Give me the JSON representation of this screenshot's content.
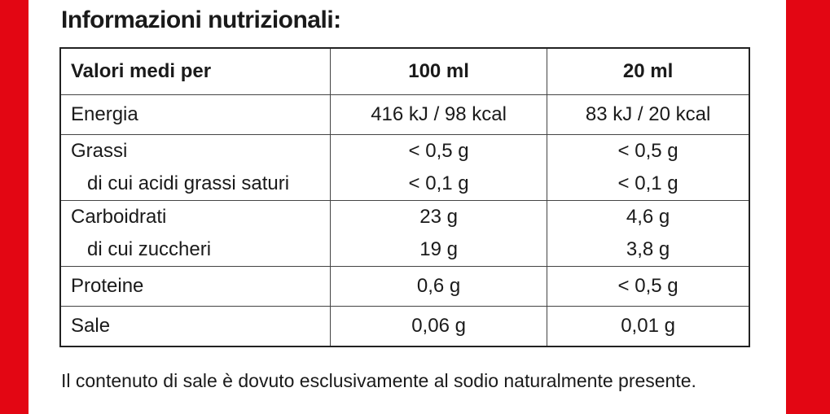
{
  "header": {
    "title": "Informazioni nutrizionali:"
  },
  "table": {
    "columns": [
      "Valori medi per",
      "100 ml",
      "20 ml"
    ],
    "rows": [
      [
        [
          "Energia"
        ],
        [
          "416 kJ / 98 kcal"
        ],
        [
          "83 kJ / 20 kcal"
        ]
      ],
      [
        [
          "Grassi",
          "di cui acidi grassi saturi"
        ],
        [
          "< 0,5 g",
          "< 0,1 g"
        ],
        [
          "< 0,5 g",
          "< 0,1 g"
        ]
      ],
      [
        [
          "Carboidrati",
          "di cui zuccheri"
        ],
        [
          "23 g",
          "19 g"
        ],
        [
          "4,6 g",
          "3,8 g"
        ]
      ],
      [
        [
          "Proteine"
        ],
        [
          "0,6 g"
        ],
        [
          "< 0,5 g"
        ]
      ],
      [
        [
          "Sale"
        ],
        [
          "0,06 g"
        ],
        [
          "0,01 g"
        ]
      ]
    ]
  },
  "footer": {
    "note": "Il contenuto di sale è dovuto esclusivamente al sodio naturalmente presente."
  }
}
